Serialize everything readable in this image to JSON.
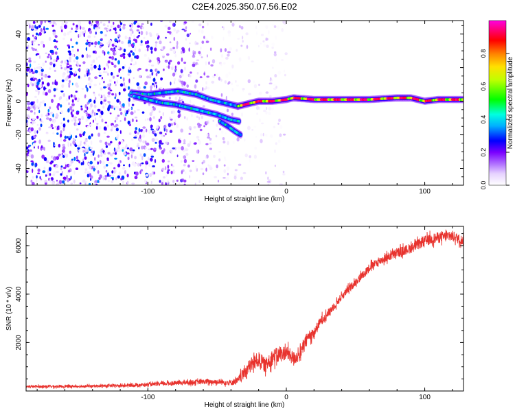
{
  "title": "C2E4.2025.350.07.56.E02",
  "chart_data": [
    {
      "type": "heatmap",
      "title": "C2E4.2025.350.07.56.E02",
      "xlabel": "Height of straight line (km)",
      "ylabel": "Frequency (Hz)",
      "xlim": [
        -188,
        128
      ],
      "ylim": [
        -50,
        48
      ],
      "xticks": [
        -100,
        0,
        100
      ],
      "xtick_labels": [
        "-100",
        "0",
        "100"
      ],
      "yticks": [
        -40,
        -20,
        0,
        20,
        40
      ],
      "ytick_labels": [
        "-40",
        "-20",
        "0",
        "20",
        "40"
      ],
      "colorbar": {
        "label": "Normalized spectral amplitude",
        "range": [
          0.0,
          1.0
        ],
        "ticks": [
          0.0,
          0.2,
          0.4,
          0.6,
          0.8
        ],
        "tick_labels": [
          "0.0",
          "0.2",
          "0.4",
          "0.6",
          "0.8"
        ],
        "colors": [
          "#ffffff",
          "#c89bff",
          "#7a00ff",
          "#0000ff",
          "#00ffff",
          "#00ff00",
          "#ffff00",
          "#ff8000",
          "#ff0000",
          "#ff00ff"
        ]
      },
      "noise_region": {
        "x_range": [
          -188,
          -35
        ],
        "freq_range": [
          -50,
          48
        ],
        "amplitude_range": [
          0.02,
          0.35
        ]
      },
      "tracks": [
        {
          "name": "upper branch",
          "points": [
            [
              -112,
              5
            ],
            [
              -100,
              4
            ],
            [
              -90,
              5
            ],
            [
              -78,
              6
            ],
            [
              -65,
              4
            ],
            [
              -55,
              1
            ],
            [
              -45,
              -1
            ],
            [
              -35,
              -3
            ]
          ],
          "amplitude": 0.3
        },
        {
          "name": "lower branch",
          "points": [
            [
              -110,
              3
            ],
            [
              -100,
              1
            ],
            [
              -90,
              -1
            ],
            [
              -80,
              -2
            ],
            [
              -70,
              -4
            ],
            [
              -60,
              -6
            ],
            [
              -50,
              -8
            ],
            [
              -40,
              -11
            ],
            [
              -34,
              -12
            ]
          ],
          "amplitude": 0.32
        },
        {
          "name": "descending branch",
          "points": [
            [
              -48,
              -12
            ],
            [
              -42,
              -15
            ],
            [
              -37,
              -18
            ],
            [
              -33,
              -20
            ]
          ],
          "amplitude": 0.35
        },
        {
          "name": "main carrier",
          "points": [
            [
              -35,
              -3
            ],
            [
              -30,
              -2
            ],
            [
              -20,
              0
            ],
            [
              -10,
              0
            ],
            [
              0,
              1
            ],
            [
              5,
              2
            ],
            [
              20,
              1
            ],
            [
              40,
              1
            ],
            [
              60,
              1
            ],
            [
              80,
              2
            ],
            [
              90,
              2
            ],
            [
              100,
              0
            ],
            [
              110,
              1
            ],
            [
              128,
              1
            ]
          ],
          "amplitude": 0.95
        }
      ]
    },
    {
      "type": "line",
      "xlabel": "Height of straight line (km)",
      "ylabel": "SNR (10 * v/v)",
      "xlim": [
        -188,
        128
      ],
      "ylim": [
        0,
        6800
      ],
      "xticks": [
        -100,
        0,
        100
      ],
      "xtick_labels": [
        "-100",
        "0",
        "100"
      ],
      "yticks": [
        2000,
        4000,
        6000
      ],
      "ytick_labels": [
        "2000",
        "4000",
        "6000"
      ],
      "color": "#e8332e",
      "series": [
        {
          "name": "SNR",
          "x": [
            -188,
            -160,
            -140,
            -120,
            -100,
            -80,
            -60,
            -50,
            -40,
            -35,
            -30,
            -25,
            -20,
            -15,
            -10,
            -5,
            0,
            5,
            10,
            15,
            20,
            25,
            30,
            40,
            50,
            60,
            70,
            80,
            90,
            100,
            110,
            120,
            128
          ],
          "y": [
            180,
            190,
            200,
            220,
            260,
            330,
            380,
            380,
            350,
            420,
            800,
            1100,
            1300,
            1050,
            1400,
            1500,
            1600,
            1350,
            1500,
            2200,
            2400,
            2900,
            3200,
            3900,
            4500,
            5100,
            5450,
            5700,
            5900,
            6200,
            6350,
            6400,
            6200
          ],
          "noise": [
            70,
            70,
            70,
            80,
            90,
            110,
            130,
            140,
            150,
            200,
            350,
            400,
            400,
            380,
            420,
            400,
            380,
            360,
            350,
            300,
            280,
            250,
            220,
            200,
            200,
            220,
            230,
            250,
            260,
            270,
            280,
            280,
            250
          ]
        }
      ]
    }
  ]
}
